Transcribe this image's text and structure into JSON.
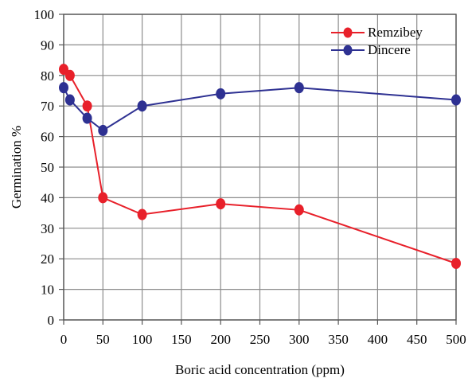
{
  "chart_data": {
    "type": "line",
    "title": "",
    "xlabel": "Boric acid concentration (ppm)",
    "ylabel": "Germination %",
    "xlim": [
      0,
      500
    ],
    "ylim": [
      0,
      100
    ],
    "xticks": [
      0,
      50,
      100,
      150,
      200,
      250,
      300,
      350,
      400,
      450,
      500
    ],
    "yticks": [
      0,
      10,
      20,
      30,
      40,
      50,
      60,
      70,
      80,
      90,
      100
    ],
    "grid": true,
    "legend_position": "top-right",
    "series": [
      {
        "name": "Remzibey",
        "color": "#e8202a",
        "x": [
          0,
          8,
          30,
          50,
          100,
          200,
          300,
          500
        ],
        "y": [
          82,
          80,
          70,
          40,
          34.5,
          38,
          36,
          18.5
        ]
      },
      {
        "name": "Dincere",
        "color": "#2e3192",
        "x": [
          0,
          8,
          30,
          50,
          100,
          200,
          300,
          500
        ],
        "y": [
          76,
          72,
          66,
          62,
          70,
          74,
          76,
          72
        ]
      }
    ]
  }
}
